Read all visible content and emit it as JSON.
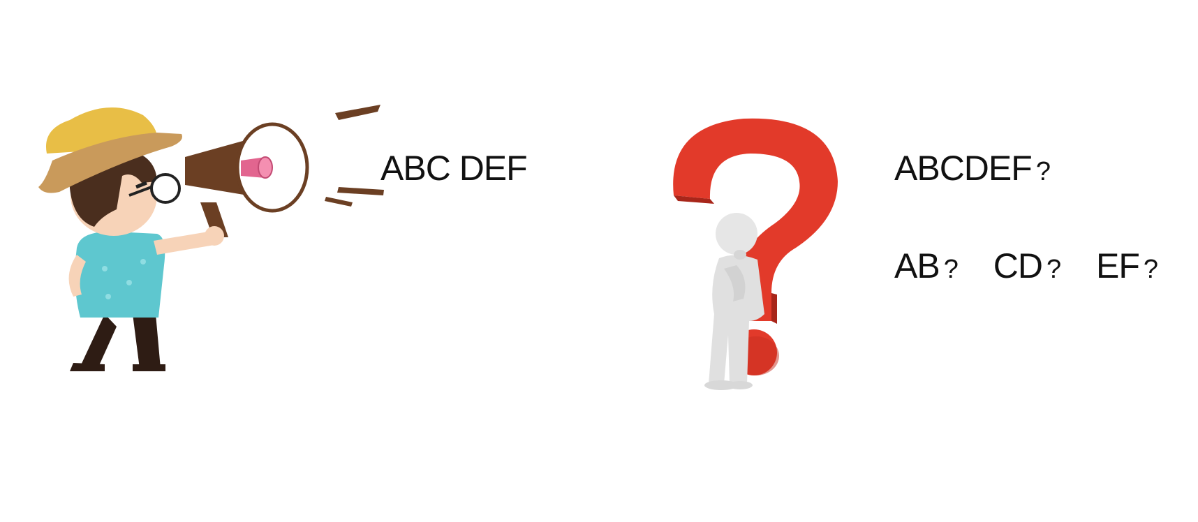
{
  "left_panel": {
    "illustration": "person-shouting-megaphone-icon",
    "announcement": "ABC DEF"
  },
  "right_panel": {
    "illustration": "thinking-person-question-mark-icon",
    "question": "ABCDEF",
    "question_mark": "?",
    "fragments": [
      {
        "text": "AB",
        "mark": "?"
      },
      {
        "text": "CD",
        "mark": "?"
      },
      {
        "text": "EF",
        "mark": "?"
      }
    ]
  },
  "colors": {
    "hat": "#E8BE46",
    "hat_brim": "#C99A5B",
    "hair": "#4A2E1E",
    "skin": "#F7D3B8",
    "shirt": "#5EC7CF",
    "pants": "#2E1C14",
    "megaphone": "#6B3F23",
    "megaphone_inner": "#E2658F",
    "question_mark": "#E23A2A",
    "figure_white": "#E6E6E6"
  }
}
